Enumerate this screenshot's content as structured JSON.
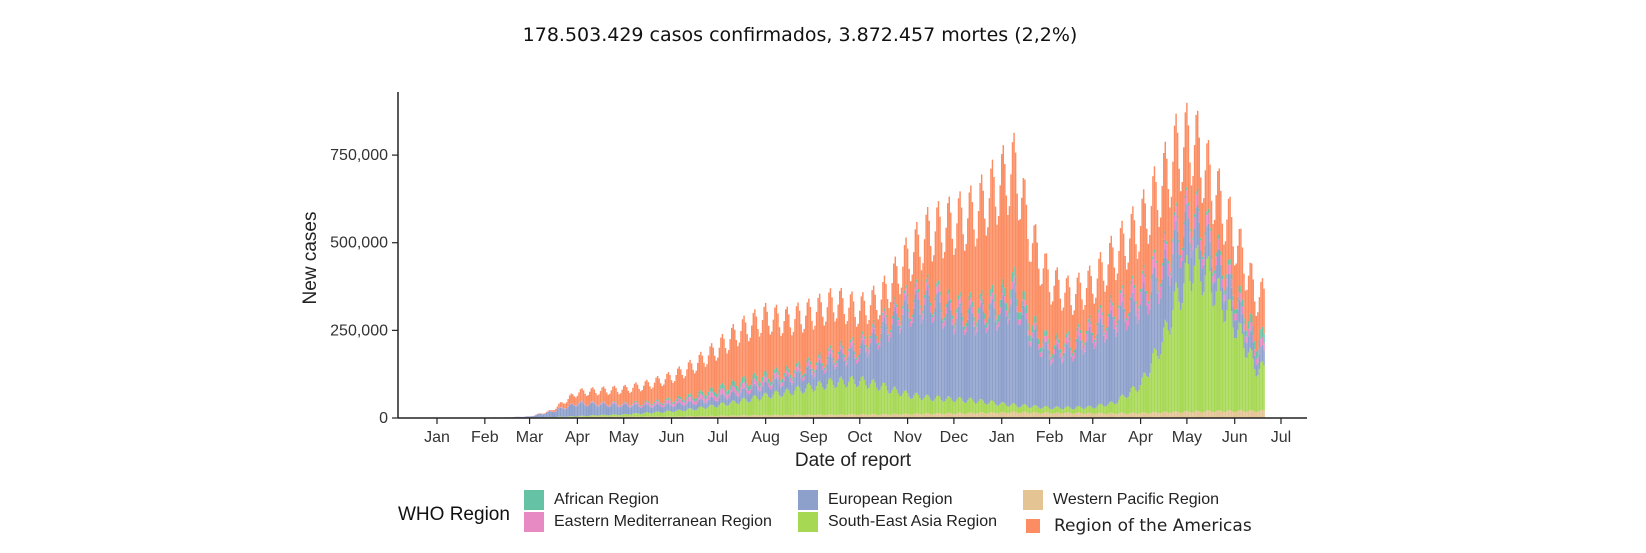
{
  "headline": "178.503.429 casos confirmados,  3.872.457 mortes (2,2%)",
  "chart_data": {
    "type": "bar",
    "stacked": true,
    "title": "",
    "xlabel": "Date of report",
    "ylabel": "New cases",
    "ylim": [
      0,
      930000
    ],
    "yticks": [
      0,
      250000,
      500000,
      750000
    ],
    "ytick_labels": [
      "0",
      "250,000",
      "500,000",
      "750,000"
    ],
    "xlim": [
      "2020-01-01",
      "2021-07-10"
    ],
    "xtick_labels": [
      "Jan",
      "Feb",
      "Mar",
      "Apr",
      "May",
      "Jun",
      "Jul",
      "Aug",
      "Sep",
      "Oct",
      "Nov",
      "Dec",
      "Jan",
      "Feb",
      "Mar",
      "Apr",
      "May",
      "Jun",
      "Jul"
    ],
    "xtick_dates": [
      "2020-01-01",
      "2020-02-01",
      "2020-03-01",
      "2020-04-01",
      "2020-05-01",
      "2020-06-01",
      "2020-07-01",
      "2020-08-01",
      "2020-09-01",
      "2020-10-01",
      "2020-11-01",
      "2020-12-01",
      "2021-01-01",
      "2021-02-01",
      "2021-03-01",
      "2021-04-01",
      "2021-05-01",
      "2021-06-01",
      "2021-07-01"
    ],
    "grid": false,
    "legend_title": "WHO Region",
    "legend_position": "bottom",
    "x": [
      "2020-01-15",
      "2020-02-15",
      "2020-03-01",
      "2020-03-15",
      "2020-04-01",
      "2020-04-15",
      "2020-05-01",
      "2020-05-15",
      "2020-06-01",
      "2020-06-15",
      "2020-07-01",
      "2020-07-15",
      "2020-08-01",
      "2020-08-15",
      "2020-09-01",
      "2020-09-15",
      "2020-10-01",
      "2020-10-15",
      "2020-11-01",
      "2020-11-15",
      "2020-12-01",
      "2020-12-15",
      "2021-01-01",
      "2021-01-10",
      "2021-01-20",
      "2021-02-01",
      "2021-02-15",
      "2021-03-01",
      "2021-03-15",
      "2021-04-01",
      "2021-04-15",
      "2021-04-25",
      "2021-05-05",
      "2021-05-15",
      "2021-06-01",
      "2021-06-15"
    ],
    "series": [
      {
        "name": "Western Pacific Region",
        "color": "#e5c494",
        "values": [
          100,
          2000,
          1000,
          1500,
          3000,
          4000,
          4000,
          4000,
          4000,
          5000,
          6000,
          7000,
          8000,
          8000,
          9000,
          9000,
          10000,
          10000,
          11000,
          12000,
          13000,
          14000,
          15000,
          16000,
          15000,
          14000,
          14000,
          13000,
          13000,
          14000,
          16000,
          17000,
          18000,
          19000,
          20000,
          20000
        ]
      },
      {
        "name": "South-East Asia Region",
        "color": "#a6d854",
        "values": [
          0,
          0,
          0,
          1000,
          2000,
          4000,
          6000,
          10000,
          15000,
          20000,
          30000,
          40000,
          55000,
          65000,
          80000,
          92000,
          95000,
          80000,
          55000,
          45000,
          40000,
          35000,
          25000,
          20000,
          18000,
          15000,
          15000,
          18000,
          30000,
          80000,
          200000,
          330000,
          420000,
          380000,
          250000,
          120000
        ]
      },
      {
        "name": "European Region",
        "color": "#8da0cb",
        "values": [
          0,
          100,
          3000,
          15000,
          35000,
          30000,
          25000,
          20000,
          18000,
          18000,
          20000,
          25000,
          30000,
          35000,
          45000,
          65000,
          80000,
          150000,
          240000,
          270000,
          230000,
          230000,
          260000,
          300000,
          200000,
          150000,
          160000,
          200000,
          230000,
          230000,
          180000,
          150000,
          110000,
          80000,
          60000,
          40000
        ]
      },
      {
        "name": "Eastern Mediterranean Region",
        "color": "#e78ac3",
        "values": [
          0,
          0,
          500,
          1000,
          2000,
          3000,
          4000,
          6000,
          9000,
          12000,
          14000,
          14000,
          13000,
          12000,
          12000,
          13000,
          14000,
          16000,
          18000,
          20000,
          18000,
          17000,
          17000,
          17000,
          16000,
          15000,
          18000,
          22000,
          30000,
          36000,
          38000,
          36000,
          33000,
          28000,
          22000,
          20000
        ]
      },
      {
        "name": "African Region",
        "color": "#66c2a5",
        "values": [
          0,
          0,
          0,
          200,
          500,
          1000,
          2000,
          3000,
          5000,
          8000,
          12000,
          15000,
          13000,
          10000,
          8000,
          7000,
          7000,
          7000,
          8000,
          9000,
          10000,
          14000,
          22000,
          25000,
          20000,
          12000,
          9000,
          8000,
          8000,
          8000,
          8000,
          8000,
          8000,
          9000,
          14000,
          25000
        ]
      },
      {
        "name": "Region of the Americas",
        "color": "#fc8d62",
        "values": [
          0,
          0,
          0,
          2000,
          30000,
          35000,
          40000,
          50000,
          65000,
          85000,
          115000,
          145000,
          165000,
          145000,
          145000,
          140000,
          100000,
          75000,
          120000,
          170000,
          240000,
          270000,
          330000,
          330000,
          240000,
          180000,
          130000,
          120000,
          150000,
          180000,
          220000,
          220000,
          200000,
          170000,
          150000,
          120000
        ]
      }
    ]
  }
}
